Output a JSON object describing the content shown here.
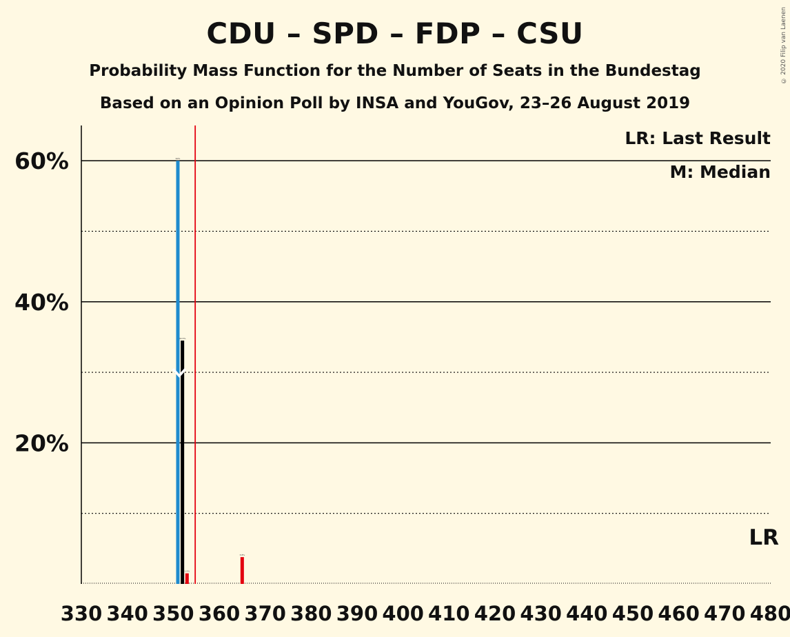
{
  "chart_data": {
    "type": "bar",
    "title": "CDU – SPD – FDP – CSU",
    "subtitle": "Probability Mass Function for the Number of Seats in the Bundestag",
    "subtitle2": "Based on an Opinion Poll by INSA and YouGov, 23–26 August 2019",
    "copyright": "© 2020 Filip van Laenen",
    "legend": {
      "last_result": "LR: Last Result",
      "median": "M: Median"
    },
    "last_result_label": "LR",
    "xlim": [
      330,
      480
    ],
    "ylim": [
      0,
      65
    ],
    "x_ticks": [
      330,
      340,
      350,
      360,
      370,
      380,
      390,
      400,
      410,
      420,
      430,
      440,
      450,
      460,
      470,
      480
    ],
    "y_ticks_major": [
      {
        "value": 20,
        "label": "20%"
      },
      {
        "value": 40,
        "label": "40%"
      },
      {
        "value": 60,
        "label": "60%"
      }
    ],
    "y_ticks_minor": [
      10,
      30,
      50
    ],
    "median": 351,
    "last_result": 355,
    "series": [
      {
        "color": "#1F8BCE",
        "points": [
          {
            "x": 351,
            "y": 60.0
          }
        ]
      },
      {
        "color": "#000000",
        "points": [
          {
            "x": 352,
            "y": 34.5
          }
        ]
      },
      {
        "color": "#E3000F",
        "points": [
          {
            "x": 353,
            "y": 1.5
          },
          {
            "x": 365,
            "y": 3.8
          }
        ]
      }
    ],
    "colors": {
      "background": "#FFF9E3",
      "median_line": "#FFFFFF",
      "last_result_line": "#E3000F",
      "grid": "#000000"
    }
  }
}
